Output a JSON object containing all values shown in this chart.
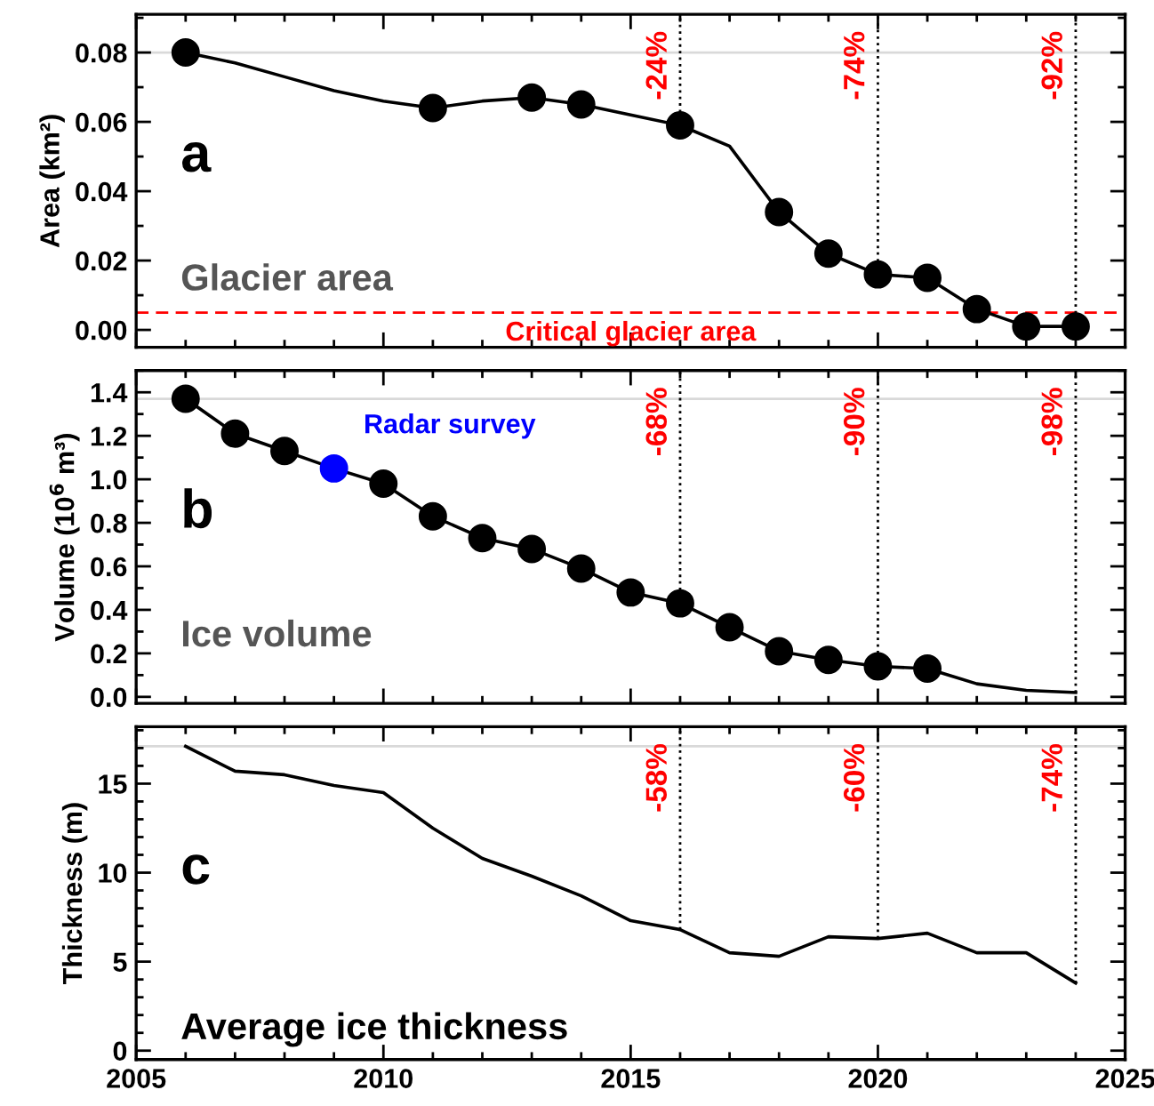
{
  "chart_data": [
    {
      "type": "line",
      "ylabel": "Area (km²)",
      "xlim": [
        2005,
        2025
      ],
      "xticks": [
        2005,
        2010,
        2015,
        2020,
        2025
      ],
      "ylim": [
        -0.005,
        0.091
      ],
      "yticks": [
        {
          "value": 0,
          "label": "0.00"
        },
        {
          "value": 0.02,
          "label": "0.02"
        },
        {
          "value": 0.04,
          "label": "0.04"
        },
        {
          "value": 0.06,
          "label": "0.06"
        },
        {
          "value": 0.08,
          "label": "0.08"
        }
      ],
      "tick_labels": "y",
      "grid": false,
      "legend": false,
      "series": [
        {
          "color": "#000000",
          "line_style": "solid",
          "x": [
            2006,
            2007,
            2008,
            2009,
            2010,
            2011,
            2012,
            2013,
            2014,
            2015,
            2016,
            2017,
            2018,
            2019,
            2020,
            2021,
            2022,
            2023,
            2024
          ],
          "values": [
            0.08,
            0.077,
            0.073,
            0.069,
            0.066,
            0.064,
            0.066,
            0.067,
            0.065,
            0.062,
            0.059,
            0.053,
            0.034,
            0.022,
            0.016,
            0.015,
            0.006,
            0.001,
            0.001
          ]
        },
        {
          "type": "scatter",
          "marker": "circle",
          "color": "#000000",
          "x": [
            2006,
            2011,
            2013,
            2014,
            2016,
            2018,
            2019,
            2020,
            2021,
            2022,
            2023,
            2024
          ],
          "values": [
            0.08,
            0.064,
            0.067,
            0.065,
            0.059,
            0.034,
            0.022,
            0.016,
            0.015,
            0.006,
            0.001,
            0.001
          ]
        }
      ],
      "ref_lines": [
        {
          "axis": "y",
          "value": 0.08,
          "color": "#d9d9d9",
          "line_style": "solid"
        },
        {
          "axis": "y",
          "value": 0.005,
          "label": "Critical glacier area",
          "color": "#ff0000",
          "line_style": "dashed"
        },
        {
          "axis": "x",
          "value": 2016,
          "color": "#000000",
          "line_style": "dotted"
        },
        {
          "axis": "x",
          "value": 2020,
          "color": "#000000",
          "line_style": "dotted"
        },
        {
          "axis": "x",
          "value": 2024,
          "color": "#000000",
          "line_style": "dotted"
        }
      ],
      "annotations": [
        "a",
        "Glacier area",
        {
          "text": "-24%",
          "x": 2016
        },
        {
          "text": "-74%",
          "x": 2020
        },
        {
          "text": "-92%",
          "x": 2024
        }
      ]
    },
    {
      "type": "line",
      "ylabel": "Volume (10$^{6}$ m³)",
      "xlim": [
        2005,
        2025
      ],
      "xticks": [
        2005,
        2010,
        2015,
        2020,
        2025
      ],
      "ylim": [
        -0.03,
        1.5
      ],
      "yticks": [
        {
          "value": 0,
          "label": "0.0"
        },
        {
          "value": 0.2,
          "label": "0.2"
        },
        {
          "value": 0.4,
          "label": "0.4"
        },
        {
          "value": 0.6,
          "label": "0.6"
        },
        {
          "value": 0.8,
          "label": "0.8"
        },
        {
          "value": 1,
          "label": "1.0"
        },
        {
          "value": 1.2,
          "label": "1.2"
        },
        {
          "value": 1.4,
          "label": "1.4"
        }
      ],
      "tick_labels": "y",
      "grid": false,
      "legend": false,
      "series": [
        {
          "color": "#000000",
          "line_style": "solid",
          "x": [
            2006,
            2007,
            2008,
            2009,
            2010,
            2011,
            2012,
            2013,
            2014,
            2015,
            2016,
            2017,
            2018,
            2019,
            2020,
            2021,
            2022,
            2023,
            2024
          ],
          "values": [
            1.37,
            1.21,
            1.13,
            1.05,
            0.98,
            0.83,
            0.73,
            0.68,
            0.59,
            0.48,
            0.43,
            0.32,
            0.21,
            0.17,
            0.14,
            0.13,
            0.06,
            0.03,
            0.02
          ]
        },
        {
          "type": "scatter",
          "marker": "circle",
          "color": "#000000",
          "x": [
            2006,
            2007,
            2008,
            2010,
            2011,
            2012,
            2013,
            2014,
            2015,
            2016,
            2017,
            2018,
            2019,
            2020,
            2021
          ],
          "values": [
            1.37,
            1.21,
            1.13,
            0.98,
            0.83,
            0.73,
            0.68,
            0.59,
            0.48,
            0.43,
            0.32,
            0.21,
            0.17,
            0.14,
            0.13
          ]
        },
        {
          "type": "scatter",
          "marker": "circle",
          "color": "#0000ff",
          "x": [
            2009
          ],
          "values": [
            1.05
          ]
        }
      ],
      "ref_lines": [
        {
          "axis": "y",
          "value": 1.37,
          "color": "#d9d9d9",
          "line_style": "solid"
        },
        {
          "axis": "x",
          "value": 2016,
          "color": "#000000",
          "line_style": "dotted"
        },
        {
          "axis": "x",
          "value": 2020,
          "color": "#000000",
          "line_style": "dotted"
        },
        {
          "axis": "x",
          "value": 2024,
          "color": "#000000",
          "line_style": "dotted"
        }
      ],
      "annotations": [
        "b",
        "Ice volume",
        {
          "text": "Radar survey",
          "x": 2009,
          "y": 1.05
        },
        {
          "text": "-68%",
          "x": 2016
        },
        {
          "text": "-90%",
          "x": 2020
        },
        {
          "text": "-98%",
          "x": 2024
        }
      ]
    },
    {
      "type": "line",
      "ylabel": "Thickness (m)",
      "xlim": [
        2005,
        2025
      ],
      "xticks": [
        2005,
        2010,
        2015,
        2020,
        2025
      ],
      "ylim": [
        -0.5,
        18.2
      ],
      "yticks": [
        0,
        5,
        10,
        15
      ],
      "grid": false,
      "legend": false,
      "series": [
        {
          "color": "#000000",
          "line_style": "solid",
          "x": [
            2006,
            2007,
            2008,
            2009,
            2010,
            2011,
            2012,
            2013,
            2014,
            2015,
            2016,
            2017,
            2018,
            2019,
            2020,
            2021,
            2022,
            2023,
            2024
          ],
          "values": [
            17.1,
            15.7,
            15.5,
            14.9,
            14.5,
            12.5,
            10.8,
            9.8,
            8.7,
            7.3,
            6.8,
            5.5,
            5.3,
            6.4,
            6.3,
            6.6,
            5.5,
            5.5,
            3.8
          ]
        }
      ],
      "ref_lines": [
        {
          "axis": "y",
          "value": 17.1,
          "color": "#d9d9d9",
          "line_style": "solid"
        },
        {
          "axis": "x",
          "value": 2016,
          "color": "#000000",
          "line_style": "dotted"
        },
        {
          "axis": "x",
          "value": 2020,
          "color": "#000000",
          "line_style": "dotted"
        },
        {
          "axis": "x",
          "value": 2024,
          "color": "#000000",
          "line_style": "dotted"
        }
      ],
      "annotations": [
        "c",
        "Average ice thickness",
        {
          "text": "-58%",
          "x": 2016
        },
        {
          "text": "-60%",
          "x": 2020
        },
        {
          "text": "-74%",
          "x": 2024
        }
      ]
    }
  ]
}
